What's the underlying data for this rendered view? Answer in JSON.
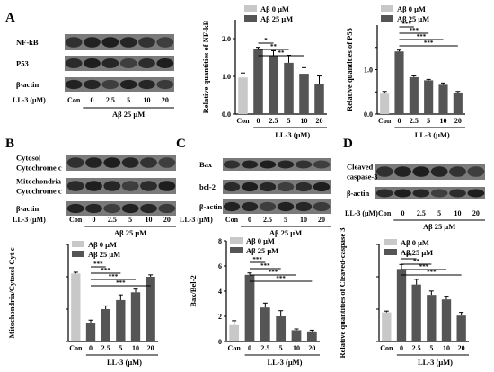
{
  "panels": {
    "A": {
      "letter": "A"
    },
    "B": {
      "letter": "B"
    },
    "C": {
      "letter": "C"
    },
    "D": {
      "letter": "D"
    }
  },
  "blots": {
    "A": {
      "rows": [
        "NF-kB",
        "P53",
        "β-actin"
      ],
      "lanes": [
        "Con",
        "0",
        "2.5",
        "5",
        "10",
        "20"
      ],
      "lane_axis_label": "LL-3 (μM)",
      "group_label": "Aβ 25 μM"
    },
    "B": {
      "rows": [
        "Cytosol",
        "Cytochrome c",
        "Mitochondria",
        "Cytochrome c",
        "β-actin"
      ],
      "lanes": [
        "Con",
        "0",
        "2.5",
        "5",
        "10",
        "20"
      ],
      "lane_axis_label": "LL-3 (μM)",
      "group_label": "Aβ 25 μM"
    },
    "C": {
      "rows": [
        "Bax",
        "bcl-2",
        "β-actin"
      ],
      "lanes": [
        "Con",
        "0",
        "2.5",
        "5",
        "10",
        "20"
      ],
      "lane_axis_label": "LL-3 (μM)",
      "group_label": "Aβ 25 μM"
    },
    "D": {
      "rows": [
        "Cleaved",
        "caspase-3",
        "β-actin"
      ],
      "lanes": [
        "Con",
        "0",
        "2.5",
        "5",
        "10",
        "20"
      ],
      "lane_axis_label": "LL-3 (μM)",
      "group_label": "Aβ 25 μM"
    }
  },
  "chart_data": [
    {
      "id": "nfkb",
      "type": "bar",
      "categories": [
        "Con",
        "0",
        "2.5",
        "5",
        "10",
        "20"
      ],
      "values": [
        0.97,
        1.72,
        1.56,
        1.36,
        1.07,
        0.81
      ],
      "errors": [
        0.12,
        0.05,
        0.12,
        0.2,
        0.16,
        0.2
      ],
      "colors": [
        "#c8c8c8",
        "#555555",
        "#555555",
        "#555555",
        "#555555",
        "#555555"
      ],
      "ylabel": "Relative quantities of NF-kB",
      "xlabel": "LL-3 (μM)",
      "ylim": [
        0,
        2.5
      ],
      "yticks": [
        0,
        1.0,
        2.0
      ],
      "ytick_labels": [
        "0.0",
        "1.0",
        "2.0"
      ],
      "legend": [
        "Aβ  0 μM",
        "Aβ 25 μM"
      ],
      "sig": [
        "*",
        "**",
        "**"
      ]
    },
    {
      "id": "p53",
      "type": "bar",
      "categories": [
        "Con",
        "0",
        "2.5",
        "5",
        "10",
        "20"
      ],
      "values": [
        0.46,
        1.41,
        0.83,
        0.76,
        0.66,
        0.48
      ],
      "errors": [
        0.05,
        0.03,
        0.03,
        0.02,
        0.04,
        0.03
      ],
      "colors": [
        "#c8c8c8",
        "#555555",
        "#555555",
        "#555555",
        "#555555",
        "#555555"
      ],
      "ylabel": "Relative quantities of P53",
      "xlabel": "LL-3 (μM)",
      "ylim": [
        0,
        2.0
      ],
      "yticks": [
        0,
        0.5,
        1.0,
        1.5
      ],
      "ytick_labels": [
        "0.0",
        "",
        "1.0",
        ""
      ],
      "legend": [
        "Aβ  0 μM",
        "Aβ 25 μM"
      ],
      "sig": [
        "***",
        "***",
        "***",
        "***"
      ]
    },
    {
      "id": "cytc",
      "type": "bar",
      "categories": [
        "Con",
        "0",
        "2.5",
        "5",
        "10",
        "20"
      ],
      "values": [
        1.05,
        0.29,
        0.5,
        0.64,
        0.76,
        1.0
      ],
      "errors": [
        0.02,
        0.04,
        0.05,
        0.08,
        0.05,
        0.03
      ],
      "colors": [
        "#c8c8c8",
        "#555555",
        "#555555",
        "#555555",
        "#555555",
        "#555555"
      ],
      "ylabel": "Mitochondria/Cytosol Cyt c",
      "xlabel": "LL-3 (μM)",
      "ylim": [
        0,
        1.5
      ],
      "yticks": [
        0,
        0.5,
        1.0,
        1.5
      ],
      "ytick_labels": [
        "",
        "",
        "",
        ""
      ],
      "legend": [
        "Aβ  0 μM",
        "Aβ 25 μM"
      ],
      "sig": [
        "***",
        "***",
        "***",
        "***"
      ]
    },
    {
      "id": "baxbcl2",
      "type": "bar",
      "categories": [
        "Con",
        "0",
        "2.5",
        "5",
        "10",
        "20"
      ],
      "values": [
        1.3,
        5.3,
        2.7,
        2.0,
        0.9,
        0.8
      ],
      "errors": [
        0.35,
        0.15,
        0.35,
        0.45,
        0.1,
        0.1
      ],
      "colors": [
        "#c8c8c8",
        "#555555",
        "#555555",
        "#555555",
        "#555555",
        "#555555"
      ],
      "ylabel": "Bax/Bel-2",
      "xlabel": "LL-3 (μM)",
      "ylim": [
        0,
        8
      ],
      "yticks": [
        0,
        2,
        4,
        6,
        8
      ],
      "ytick_labels": [
        "0",
        "2",
        "4",
        "6",
        "8"
      ],
      "legend": [
        "Aβ  0 μM",
        "Aβ 25 μM"
      ],
      "sig": [
        "***",
        "***",
        "***",
        "***"
      ]
    },
    {
      "id": "casp3",
      "type": "bar",
      "categories": [
        "Con",
        "0",
        "2.5",
        "5",
        "10",
        "20"
      ],
      "values": [
        0.45,
        1.12,
        0.88,
        0.72,
        0.65,
        0.4
      ],
      "errors": [
        0.02,
        0.07,
        0.08,
        0.06,
        0.05,
        0.05
      ],
      "colors": [
        "#c8c8c8",
        "#555555",
        "#555555",
        "#555555",
        "#555555",
        "#555555"
      ],
      "ylabel": "Relative quantities of Cleaved-caspase 3",
      "xlabel": "LL-3 (μM)",
      "ylim": [
        0,
        1.5
      ],
      "yticks": [
        0,
        0.5,
        1.0,
        1.5
      ],
      "ytick_labels": [
        "",
        "",
        "",
        ""
      ],
      "legend": [
        "Aβ  0 μM",
        "Aβ 25 μM"
      ],
      "sig": [
        "**",
        "**",
        "***",
        "***"
      ]
    }
  ]
}
